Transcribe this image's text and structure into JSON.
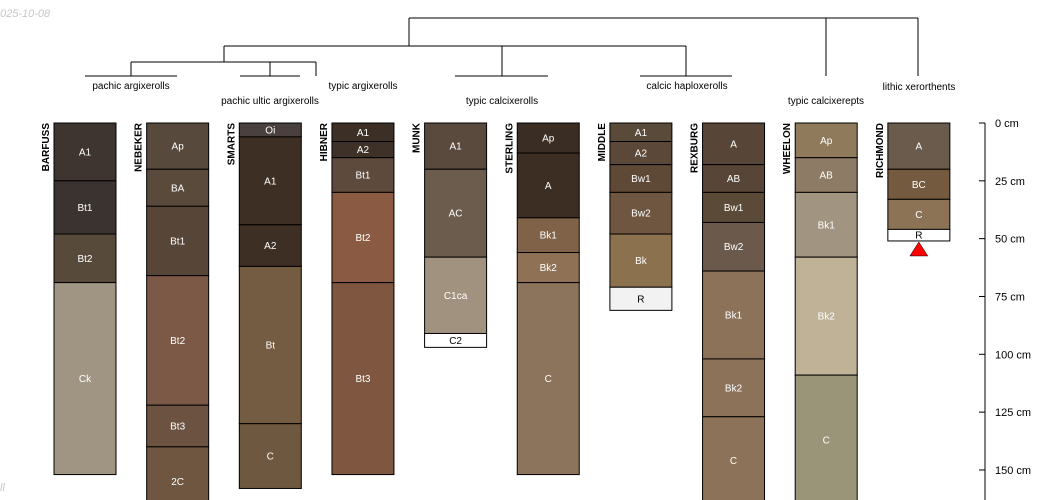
{
  "date_label": "025-10-08",
  "corner_label": "ll",
  "chart_data": {
    "type": "soil-profile",
    "title": "",
    "depth_unit": "cm",
    "depth_axis": {
      "ticks": [
        0,
        25,
        50,
        75,
        100,
        125,
        150
      ],
      "tick_suffix": " cm",
      "range": [
        0,
        165
      ]
    },
    "taxa": [
      "pachic argixerolls",
      "pachic ultic argixerolls",
      "typic argixerolls",
      "typic calcixerolls",
      "calcic haploxerolls",
      "typic calcixerepts",
      "lithic xerorthents"
    ],
    "profiles": [
      {
        "name": "BARFUSS",
        "horizons": [
          {
            "name": "A1",
            "top": 0,
            "bottom": 25,
            "color": "#3f3530"
          },
          {
            "name": "Bt1",
            "top": 25,
            "bottom": 48,
            "color": "#3a3330"
          },
          {
            "name": "Bt2",
            "top": 48,
            "bottom": 69,
            "color": "#574a3a"
          },
          {
            "name": "Ck",
            "top": 69,
            "bottom": 152,
            "color": "#a09483"
          }
        ]
      },
      {
        "name": "NEBEKER",
        "horizons": [
          {
            "name": "Ap",
            "top": 0,
            "bottom": 20,
            "color": "#574a3d"
          },
          {
            "name": "BA",
            "top": 20,
            "bottom": 36,
            "color": "#5a4a3c"
          },
          {
            "name": "Bt1",
            "top": 36,
            "bottom": 66,
            "color": "#574637"
          },
          {
            "name": "Bt2",
            "top": 66,
            "bottom": 122,
            "color": "#7b5946"
          },
          {
            "name": "Bt3",
            "top": 122,
            "bottom": 140,
            "color": "#6c5341"
          },
          {
            "name": "2C",
            "top": 140,
            "bottom": 170,
            "color": "#6e5640"
          }
        ]
      },
      {
        "name": "SMARTS",
        "horizons": [
          {
            "name": "Oi",
            "top": 0,
            "bottom": 6,
            "color": "#4a4040"
          },
          {
            "name": "A1",
            "top": 6,
            "bottom": 44,
            "color": "#3d2f24"
          },
          {
            "name": "A2",
            "top": 44,
            "bottom": 62,
            "color": "#3d2f24"
          },
          {
            "name": "Bt",
            "top": 62,
            "bottom": 130,
            "color": "#735c42"
          },
          {
            "name": "C",
            "top": 130,
            "bottom": 158,
            "color": "#6e5840"
          }
        ]
      },
      {
        "name": "HIBNER",
        "horizons": [
          {
            "name": "A1",
            "top": 0,
            "bottom": 8,
            "color": "#3c3026"
          },
          {
            "name": "A2",
            "top": 8,
            "bottom": 15,
            "color": "#3d3128"
          },
          {
            "name": "Bt1",
            "top": 15,
            "bottom": 30,
            "color": "#5e4a3c"
          },
          {
            "name": "Bt2",
            "top": 30,
            "bottom": 69,
            "color": "#8a5a43"
          },
          {
            "name": "Bt3",
            "top": 69,
            "bottom": 152,
            "color": "#7f5640"
          }
        ]
      },
      {
        "name": "MUNK",
        "horizons": [
          {
            "name": "A1",
            "top": 0,
            "bottom": 20,
            "color": "#5a4a3e"
          },
          {
            "name": "AC",
            "top": 20,
            "bottom": 58,
            "color": "#6c5c4e"
          },
          {
            "name": "C1ca",
            "top": 58,
            "bottom": 91,
            "color": "#a19280"
          },
          {
            "name": "C2",
            "top": 91,
            "bottom": 97,
            "color": "#ffffff"
          }
        ]
      },
      {
        "name": "STERLING",
        "horizons": [
          {
            "name": "Ap",
            "top": 0,
            "bottom": 13,
            "color": "#3a2d24"
          },
          {
            "name": "A",
            "top": 13,
            "bottom": 41,
            "color": "#3c2e23"
          },
          {
            "name": "Bk1",
            "top": 41,
            "bottom": 56,
            "color": "#7f6248"
          },
          {
            "name": "Bk2",
            "top": 56,
            "bottom": 69,
            "color": "#8f7156"
          },
          {
            "name": "C",
            "top": 69,
            "bottom": 152,
            "color": "#8b735c"
          }
        ]
      },
      {
        "name": "MIDDLE",
        "horizons": [
          {
            "name": "A1",
            "top": 0,
            "bottom": 8,
            "color": "#5a4a3a"
          },
          {
            "name": "A2",
            "top": 8,
            "bottom": 18,
            "color": "#5c4838"
          },
          {
            "name": "Bw1",
            "top": 18,
            "bottom": 30,
            "color": "#5e4836"
          },
          {
            "name": "Bw2",
            "top": 30,
            "bottom": 48,
            "color": "#6e5640"
          },
          {
            "name": "Bk",
            "top": 48,
            "bottom": 71,
            "color": "#8c714f"
          },
          {
            "name": "R",
            "top": 71,
            "bottom": 81,
            "color": "#f2f2f2"
          }
        ]
      },
      {
        "name": "REXBURG",
        "horizons": [
          {
            "name": "A",
            "top": 0,
            "bottom": 18,
            "color": "#574637"
          },
          {
            "name": "AB",
            "top": 18,
            "bottom": 30,
            "color": "#574637"
          },
          {
            "name": "Bw1",
            "top": 30,
            "bottom": 43,
            "color": "#5c4a39"
          },
          {
            "name": "Bw2",
            "top": 43,
            "bottom": 64,
            "color": "#6b5a4b"
          },
          {
            "name": "Bk1",
            "top": 64,
            "bottom": 102,
            "color": "#8b7258"
          },
          {
            "name": "Bk2",
            "top": 102,
            "bottom": 127,
            "color": "#8b7258"
          },
          {
            "name": "C",
            "top": 127,
            "bottom": 165,
            "color": "#8b7258"
          }
        ]
      },
      {
        "name": "WHEELON",
        "horizons": [
          {
            "name": "Ap",
            "top": 0,
            "bottom": 15,
            "color": "#8f7b5c"
          },
          {
            "name": "AB",
            "top": 15,
            "bottom": 30,
            "color": "#8d7b65"
          },
          {
            "name": "Bk1",
            "top": 30,
            "bottom": 58,
            "color": "#a19480"
          },
          {
            "name": "Bk2",
            "top": 58,
            "bottom": 109,
            "color": "#bfb297"
          },
          {
            "name": "C",
            "top": 109,
            "bottom": 165,
            "color": "#9a9478"
          }
        ]
      },
      {
        "name": "RICHMOND",
        "horizons": [
          {
            "name": "A",
            "top": 0,
            "bottom": 20,
            "color": "#6b5b4c"
          },
          {
            "name": "BC",
            "top": 20,
            "bottom": 33,
            "color": "#745a3e"
          },
          {
            "name": "C",
            "top": 33,
            "bottom": 46,
            "color": "#8c7355"
          },
          {
            "name": "R",
            "top": 46,
            "bottom": 51,
            "color": "#ffffff"
          }
        ],
        "lithic_contact": true
      }
    ]
  }
}
